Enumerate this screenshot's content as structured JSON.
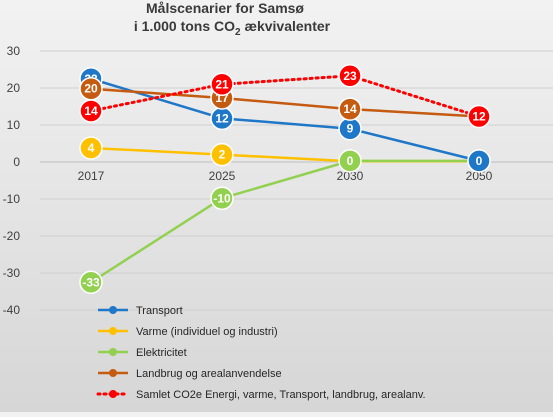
{
  "chart_data": {
    "type": "line",
    "title_line1": "Målscenarier for Samsø",
    "title_line2_pre": "i 1.000 tons CO",
    "title_line2_sub": "2",
    "title_line2_post": " ækvivalenter",
    "categories": [
      "2017",
      "2025",
      "2030",
      "2050"
    ],
    "yticks": [
      "30",
      "20",
      "10",
      "0",
      "-10",
      "-20",
      "-30",
      "-40"
    ],
    "ylim": [
      -40,
      30
    ],
    "grid": true,
    "legend_position": "bottom",
    "series": [
      {
        "name": "Transport",
        "values": [
          22.5,
          11.8,
          9,
          0.3
        ],
        "labels": [
          "23",
          "12",
          "9",
          "0"
        ],
        "color": "#1f77c8",
        "dash": false
      },
      {
        "name": "Varme (individuel og industri)",
        "values": [
          3.8,
          2,
          null,
          null
        ],
        "labels": [
          "4",
          "2",
          "",
          ""
        ],
        "color": "#ffc000",
        "dash": false
      },
      {
        "name": "Elektricitet",
        "values": [
          -32.5,
          -9.8,
          0.3,
          0.3
        ],
        "labels": [
          "-33",
          "-10",
          "0",
          "0"
        ],
        "color": "#92d050",
        "dash": false
      },
      {
        "name": "Landbrug og arealanvendelse",
        "values": [
          19.8,
          17.3,
          14.3,
          12.3
        ],
        "labels": [
          "20",
          "17",
          "14",
          ""
        ],
        "color": "#c55a11",
        "dash": false
      },
      {
        "name": "Samlet CO2e Energi, varme, Transport, landbrug, arealanv.",
        "values": [
          13.8,
          21,
          23.3,
          12.3
        ],
        "labels": [
          "14",
          "21",
          "23",
          "12"
        ],
        "color": "#ff0000",
        "dash": true
      }
    ],
    "varme_tail": [
      [
        2,
        0.2
      ],
      [
        3,
        0.2
      ]
    ]
  }
}
